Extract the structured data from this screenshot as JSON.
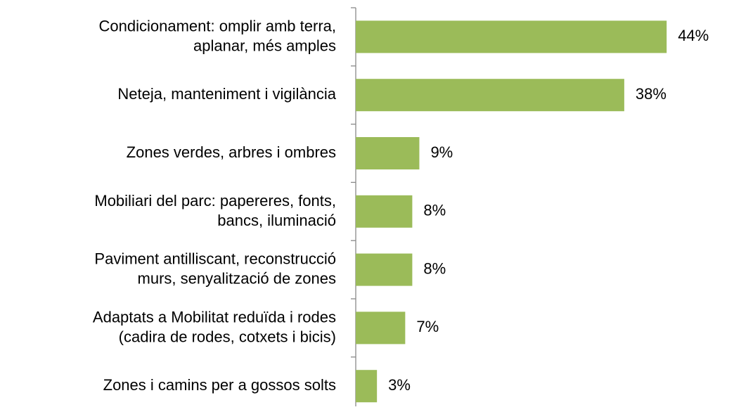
{
  "chart_data": {
    "type": "bar",
    "orientation": "horizontal",
    "categories": [
      "Condicionament: omplir amb terra,\naplanar, més amples",
      "Neteja, manteniment i vigilància",
      "Zones verdes, arbres i ombres",
      "Mobiliari del parc: papereres, fonts,\nbancs, iluminació",
      "Paviment antilliscant, reconstrucció\nmurs, senyalització de zones",
      "Adaptats a Mobilitat reduïda i rodes\n(cadira de rodes, cotxets i bicis)",
      "Zones i camins per a gossos solts"
    ],
    "values": [
      44,
      38,
      9,
      8,
      8,
      7,
      3
    ],
    "value_labels": [
      "44%",
      "38%",
      "9%",
      "8%",
      "8%",
      "7%",
      "3%"
    ],
    "color": "#9bbb59"
  }
}
